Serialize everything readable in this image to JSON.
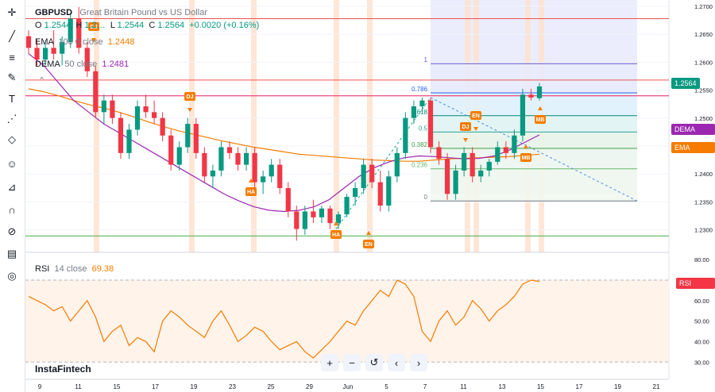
{
  "symbol": {
    "ticker": "GBPUSD",
    "description": "Great Britain Pound vs US Dollar",
    "ohlc": {
      "o_label": "O",
      "o": "1.2544",
      "h_label": "H",
      "h": "1.2…",
      "l_label": "L",
      "l": "1.2544",
      "c_label": "C",
      "c": "1.2564",
      "change": "+0.0020 (+0.16%)"
    }
  },
  "indicators": {
    "ema": {
      "name": "EMA",
      "params": "100  0  close",
      "value": "1.2448",
      "color": "#f57c00"
    },
    "dema": {
      "name": "DEMA",
      "params": "50  close",
      "value": "1.2481",
      "color": "#9c27b0"
    },
    "rsi": {
      "name": "RSI",
      "params": "14  close",
      "value": "69.38",
      "color": "#f57c00"
    }
  },
  "price_axis": {
    "ticks": [
      "1.2700",
      "1.2650",
      "1.2600",
      "1.2550",
      "1.2500",
      "1.2450",
      "1.2400",
      "1.2350",
      "1.2300"
    ],
    "last_price": "1.2564",
    "dema_tag": "DEMA",
    "dema_val": "1.2481",
    "ema_tag": "EMA",
    "ema_val": "1.2448"
  },
  "rsi_axis": {
    "ticks": [
      "80.00",
      "70.00",
      "60.00",
      "50.00",
      "40.00",
      "30.00"
    ],
    "tag": "RSI",
    "val": "69.38"
  },
  "date_axis": {
    "labels": [
      "9",
      "11",
      "15",
      "17",
      "19",
      "23",
      "25",
      "29",
      "Jun",
      "5",
      "7",
      "11",
      "13",
      "15",
      "17",
      "19",
      "21"
    ]
  },
  "fibonacci": {
    "levels": [
      {
        "label": "1",
        "price": 1.2603,
        "color": "#6a5acd"
      },
      {
        "label": "0.786",
        "price": 1.2553,
        "color": "#2962ff"
      },
      {
        "label": "0.618",
        "price": 1.2514,
        "color": "#00897b"
      },
      {
        "label": "0.5",
        "price": 1.2486,
        "color": "#26a69a"
      },
      {
        "label": "0.382",
        "price": 1.2458,
        "color": "#43a047"
      },
      {
        "label": "0.236",
        "price": 1.2423,
        "color": "#66bb6a"
      },
      {
        "label": "0",
        "price": 1.2368,
        "color": "#787b86"
      }
    ]
  },
  "horizontal_lines": [
    {
      "price": 1.268,
      "color": "#ef5350"
    },
    {
      "price": 1.2575,
      "color": "#ef5350"
    },
    {
      "price": 1.2548,
      "color": "#e91e63"
    },
    {
      "price": 1.2308,
      "color": "#4caf50"
    }
  ],
  "signals": [
    {
      "label": "DJ",
      "direction": "down",
      "color": "#f57c00"
    },
    {
      "label": "DJ",
      "direction": "down",
      "color": "#f57c00"
    },
    {
      "label": "HA",
      "direction": "up",
      "color": "#f57c00"
    },
    {
      "label": "HA",
      "direction": "up",
      "color": "#f57c00"
    },
    {
      "label": "EN",
      "direction": "up",
      "color": "#f57c00"
    },
    {
      "label": "DJ",
      "direction": "down",
      "color": "#f57c00"
    },
    {
      "label": "EN",
      "direction": "down",
      "color": "#f57c00"
    },
    {
      "label": "MB",
      "direction": "up",
      "color": "#f57c00"
    },
    {
      "label": "MB",
      "direction": "up",
      "color": "#f57c00"
    }
  ],
  "colors": {
    "up": "#089981",
    "down": "#f23645",
    "fib_zone": "#e3e6fb",
    "signal_band": "#ffe0cc",
    "rsi_fill": "#fff3ea"
  },
  "watermark": "InstaFintech",
  "chart_data": {
    "type": "candlestick",
    "series": [
      {
        "name": "GBPUSD",
        "values": [
          [
            1.265,
            1.266,
            1.262,
            1.263
          ],
          [
            1.263,
            1.2645,
            1.26,
            1.261
          ],
          [
            1.261,
            1.264,
            1.26,
            1.263
          ],
          [
            1.263,
            1.266,
            1.261,
            1.262
          ],
          [
            1.262,
            1.265,
            1.26,
            1.264
          ],
          [
            1.264,
            1.269,
            1.263,
            1.268
          ],
          [
            1.268,
            1.27,
            1.262,
            1.263
          ],
          [
            1.263,
            1.264,
            1.258,
            1.259
          ],
          [
            1.259,
            1.26,
            1.251,
            1.252
          ],
          [
            1.252,
            1.255,
            1.25,
            1.254
          ],
          [
            1.254,
            1.255,
            1.25,
            1.251
          ],
          [
            1.251,
            1.252,
            1.244,
            1.245
          ],
          [
            1.245,
            1.25,
            1.244,
            1.249
          ],
          [
            1.249,
            1.254,
            1.248,
            1.253
          ],
          [
            1.253,
            1.255,
            1.251,
            1.252
          ],
          [
            1.252,
            1.254,
            1.25,
            1.251
          ],
          [
            1.251,
            1.252,
            1.247,
            1.248
          ],
          [
            1.248,
            1.249,
            1.242,
            1.243
          ],
          [
            1.243,
            1.247,
            1.242,
            1.246
          ],
          [
            1.246,
            1.251,
            1.245,
            1.25
          ],
          [
            1.25,
            1.251,
            1.244,
            1.245
          ],
          [
            1.245,
            1.246,
            1.24,
            1.241
          ],
          [
            1.241,
            1.243,
            1.239,
            1.242
          ],
          [
            1.242,
            1.247,
            1.241,
            1.246
          ],
          [
            1.246,
            1.247,
            1.244,
            1.245
          ],
          [
            1.245,
            1.246,
            1.242,
            1.243
          ],
          [
            1.243,
            1.246,
            1.242,
            1.245
          ],
          [
            1.245,
            1.246,
            1.239,
            1.24
          ],
          [
            1.24,
            1.242,
            1.238,
            1.241
          ],
          [
            1.241,
            1.244,
            1.24,
            1.243
          ],
          [
            1.243,
            1.244,
            1.238,
            1.239
          ],
          [
            1.239,
            1.24,
            1.234,
            1.235
          ],
          [
            1.235,
            1.236,
            1.23,
            1.232
          ],
          [
            1.232,
            1.236,
            1.231,
            1.235
          ],
          [
            1.235,
            1.237,
            1.233,
            1.234
          ],
          [
            1.234,
            1.236,
            1.233,
            1.2355
          ],
          [
            1.2355,
            1.236,
            1.232,
            1.233
          ],
          [
            1.233,
            1.235,
            1.232,
            1.2345
          ],
          [
            1.2345,
            1.238,
            1.234,
            1.2375
          ],
          [
            1.2375,
            1.24,
            1.236,
            1.239
          ],
          [
            1.239,
            1.244,
            1.238,
            1.243
          ],
          [
            1.243,
            1.244,
            1.239,
            1.24
          ],
          [
            1.24,
            1.242,
            1.235,
            1.236
          ],
          [
            1.236,
            1.242,
            1.235,
            1.241
          ],
          [
            1.241,
            1.246,
            1.24,
            1.245
          ],
          [
            1.245,
            1.252,
            1.244,
            1.251
          ],
          [
            1.251,
            1.254,
            1.25,
            1.253
          ],
          [
            1.253,
            1.2545,
            1.252,
            1.254
          ],
          [
            1.254,
            1.2545,
            1.245,
            1.246
          ],
          [
            1.246,
            1.247,
            1.243,
            1.244
          ],
          [
            1.244,
            1.245,
            1.237,
            1.238
          ],
          [
            1.238,
            1.243,
            1.237,
            1.242
          ],
          [
            1.242,
            1.246,
            1.241,
            1.245
          ],
          [
            1.245,
            1.246,
            1.24,
            1.241
          ],
          [
            1.241,
            1.243,
            1.24,
            1.242
          ],
          [
            1.242,
            1.244,
            1.241,
            1.2435
          ],
          [
            1.2435,
            1.247,
            1.243,
            1.246
          ],
          [
            1.246,
            1.247,
            1.244,
            1.245
          ],
          [
            1.245,
            1.249,
            1.244,
            1.248
          ],
          [
            1.248,
            1.256,
            1.247,
            1.255
          ],
          [
            1.255,
            1.256,
            1.254,
            1.2545
          ],
          [
            1.2544,
            1.257,
            1.254,
            1.2564
          ]
        ]
      }
    ],
    "ema100": [
      1.256,
      1.2555,
      1.2548,
      1.254,
      1.2533,
      1.2527,
      1.252,
      1.2512,
      1.2503,
      1.2495,
      1.2488,
      1.2482,
      1.2476,
      1.247,
      1.2465,
      1.246,
      1.2456,
      1.2452,
      1.2448,
      1.2446,
      1.2444,
      1.2442,
      1.244,
      1.2438,
      1.2437,
      1.2436,
      1.2436,
      1.2438,
      1.244,
      1.2441,
      1.2442,
      1.2443,
      1.2444,
      1.2446,
      1.2448
    ],
    "dema50": [
      1.262,
      1.26,
      1.257,
      1.254,
      1.252,
      1.25,
      1.2485,
      1.247,
      1.2455,
      1.244,
      1.2425,
      1.241,
      1.2395,
      1.238,
      1.2368,
      1.2358,
      1.2352,
      1.235,
      1.2352,
      1.2358,
      1.237,
      1.239,
      1.241,
      1.2425,
      1.2435,
      1.2442,
      1.2445,
      1.2444,
      1.2442,
      1.244,
      1.2441,
      1.2445,
      1.2455,
      1.2468,
      1.2481
    ],
    "rsi": [
      62,
      60,
      58,
      55,
      57,
      50,
      55,
      60,
      52,
      40,
      45,
      48,
      38,
      42,
      40,
      35,
      50,
      55,
      52,
      48,
      45,
      42,
      50,
      55,
      48,
      40,
      43,
      47,
      45,
      40,
      36,
      38,
      40,
      35,
      32,
      36,
      40,
      45,
      50,
      48,
      55,
      60,
      65,
      62,
      70,
      68,
      62,
      45,
      40,
      50,
      55,
      48,
      52,
      60,
      56,
      50,
      55,
      58,
      62,
      68,
      70,
      69.38
    ],
    "ylim": [
      1.228,
      1.2712
    ],
    "rsi_ylim": [
      27,
      82
    ]
  }
}
